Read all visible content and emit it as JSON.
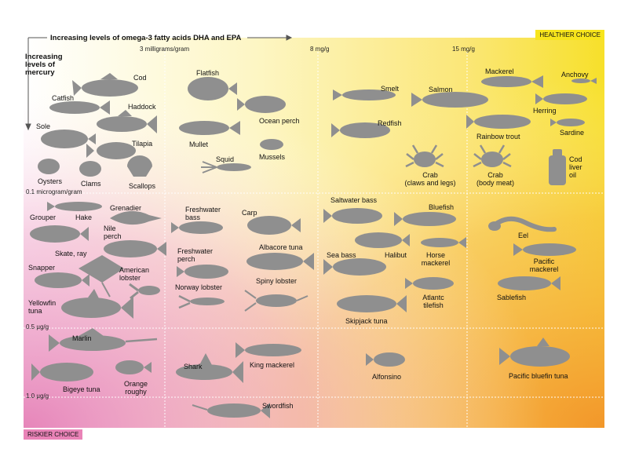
{
  "header": {
    "x_axis_title": "Increasing levels of omega-3 fatty acids DHA and EPA",
    "y_axis_title": "Increasing levels of mercury",
    "healthier_badge": "HEALTHIER CHOICE",
    "riskier_badge": "RISKIER CHOICE"
  },
  "omega_scale": [
    "3 milligrams/gram",
    "8 mg/g",
    "15 mg/g"
  ],
  "mercury_scale": [
    "0.1 microgram/gram",
    "0.5 µg/g",
    "1.0 µg/g"
  ],
  "colors": {
    "healthier": "#f7e51c",
    "riskier": "#e983b7",
    "orange": "#f29a2c",
    "fish_fill": "#8f8f8f"
  },
  "species": [
    {
      "label": "Cod",
      "icon": "fish-icon"
    },
    {
      "label": "Catfish",
      "icon": "fish-icon"
    },
    {
      "label": "Haddock",
      "icon": "fish-icon"
    },
    {
      "label": "Sole",
      "icon": "flatfish-icon"
    },
    {
      "label": "Tilapia",
      "icon": "fish-icon"
    },
    {
      "label": "Oysters",
      "icon": "oyster-icon"
    },
    {
      "label": "Clams",
      "icon": "clam-icon"
    },
    {
      "label": "Scallops",
      "icon": "scallop-icon"
    },
    {
      "label": "Flatfish",
      "icon": "flatfish-icon"
    },
    {
      "label": "Ocean perch",
      "icon": "fish-icon"
    },
    {
      "label": "Mullet",
      "icon": "fish-icon"
    },
    {
      "label": "Mussels",
      "icon": "mussel-icon"
    },
    {
      "label": "Squid",
      "icon": "squid-icon"
    },
    {
      "label": "Smelt",
      "icon": "fish-icon"
    },
    {
      "label": "Salmon",
      "icon": "fish-icon"
    },
    {
      "label": "Redfish",
      "icon": "fish-icon"
    },
    {
      "label": "Crab\n(claws and legs)",
      "icon": "crab-icon"
    },
    {
      "label": "Mackerel",
      "icon": "fish-icon"
    },
    {
      "label": "Anchovy",
      "icon": "fish-icon"
    },
    {
      "label": "Herring",
      "icon": "fish-icon"
    },
    {
      "label": "Rainbow trout",
      "icon": "fish-icon"
    },
    {
      "label": "Sardine",
      "icon": "fish-icon"
    },
    {
      "label": "Crab\n(body meat)",
      "icon": "crab-icon"
    },
    {
      "label": "Cod\nliver\noil",
      "icon": "bottle-icon"
    },
    {
      "label": "Grouper",
      "icon": "fish-icon"
    },
    {
      "label": "Hake",
      "icon": "fish-icon"
    },
    {
      "label": "Grenadier",
      "icon": "fish-icon"
    },
    {
      "label": "Nile\nperch",
      "icon": "fish-icon"
    },
    {
      "label": "Skate, ray",
      "icon": "ray-icon"
    },
    {
      "label": "Snapper",
      "icon": "fish-icon"
    },
    {
      "label": "American\nlobster",
      "icon": "lobster-icon"
    },
    {
      "label": "Yellowfin\ntuna",
      "icon": "tuna-icon"
    },
    {
      "label": "Freshwater\nbass",
      "icon": "fish-icon"
    },
    {
      "label": "Carp",
      "icon": "fish-icon"
    },
    {
      "label": "Freshwater\nperch",
      "icon": "fish-icon"
    },
    {
      "label": "Albacore tuna",
      "icon": "tuna-icon"
    },
    {
      "label": "Norway lobster",
      "icon": "lobster-icon"
    },
    {
      "label": "Spiny lobster",
      "icon": "lobster-icon"
    },
    {
      "label": "Saltwater bass",
      "icon": "fish-icon"
    },
    {
      "label": "Bluefish",
      "icon": "fish-icon"
    },
    {
      "label": "Sea bass",
      "icon": "fish-icon"
    },
    {
      "label": "Halibut",
      "icon": "fish-icon"
    },
    {
      "label": "Horse\nmackerel",
      "icon": "fish-icon"
    },
    {
      "label": "Atlantc\ntilefish",
      "icon": "fish-icon"
    },
    {
      "label": "Skipjack tuna",
      "icon": "tuna-icon"
    },
    {
      "label": "Eel",
      "icon": "eel-icon"
    },
    {
      "label": "Pacific\nmackerel",
      "icon": "fish-icon"
    },
    {
      "label": "Sablefish",
      "icon": "fish-icon"
    },
    {
      "label": "Marlin",
      "icon": "marlin-icon"
    },
    {
      "label": "Bigeye tuna",
      "icon": "tuna-icon"
    },
    {
      "label": "Orange\nroughy",
      "icon": "fish-icon"
    },
    {
      "label": "Shark",
      "icon": "shark-icon"
    },
    {
      "label": "King mackerel",
      "icon": "fish-icon"
    },
    {
      "label": "Alfonsino",
      "icon": "fish-icon"
    },
    {
      "label": "Pacific bluefin tuna",
      "icon": "tuna-icon"
    },
    {
      "label": "Swordfish",
      "icon": "swordfish-icon"
    }
  ]
}
